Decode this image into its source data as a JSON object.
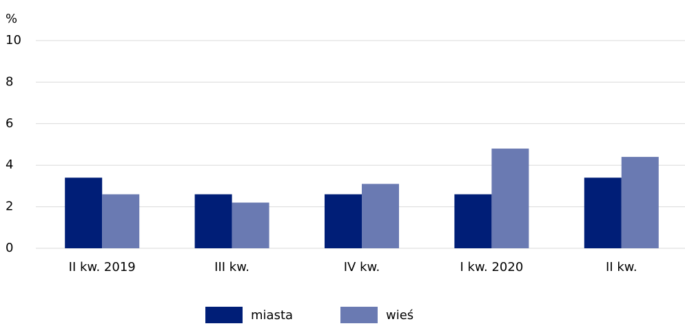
{
  "chart_data": {
    "type": "bar",
    "ylabel": "%",
    "categories": [
      "II kw. 2019",
      "III kw.",
      "IV kw.",
      "I kw. 2020",
      "II kw."
    ],
    "series": [
      {
        "name": "miasta",
        "color": "#001e77",
        "values": [
          3.4,
          2.6,
          2.6,
          2.6,
          3.4
        ]
      },
      {
        "name": "wieś",
        "color": "#6a7ab2",
        "values": [
          2.6,
          2.2,
          3.1,
          4.8,
          4.4
        ]
      }
    ],
    "ylim": [
      0,
      10
    ],
    "yticks": [
      0,
      2,
      4,
      6,
      8,
      10
    ],
    "grid": true,
    "legend": "bottom"
  }
}
